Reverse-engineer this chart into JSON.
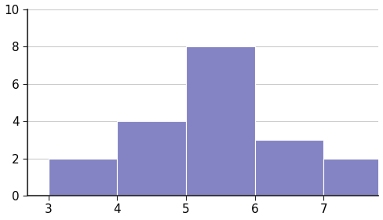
{
  "bin_edges": [
    3,
    4,
    5,
    6,
    7,
    8
  ],
  "heights": [
    2,
    4,
    8,
    3,
    2
  ],
  "bar_color": "#8484c4",
  "bar_edgecolor": "#ffffff",
  "xlim": [
    2.7,
    7.8
  ],
  "ylim": [
    0,
    10
  ],
  "xticks": [
    3,
    4,
    5,
    6,
    7
  ],
  "yticks": [
    0,
    2,
    4,
    6,
    8,
    10
  ],
  "grid_color": "#cccccc",
  "grid_linewidth": 0.8,
  "background_color": "#ffffff",
  "tick_fontsize": 11,
  "spine_color": "#222222"
}
